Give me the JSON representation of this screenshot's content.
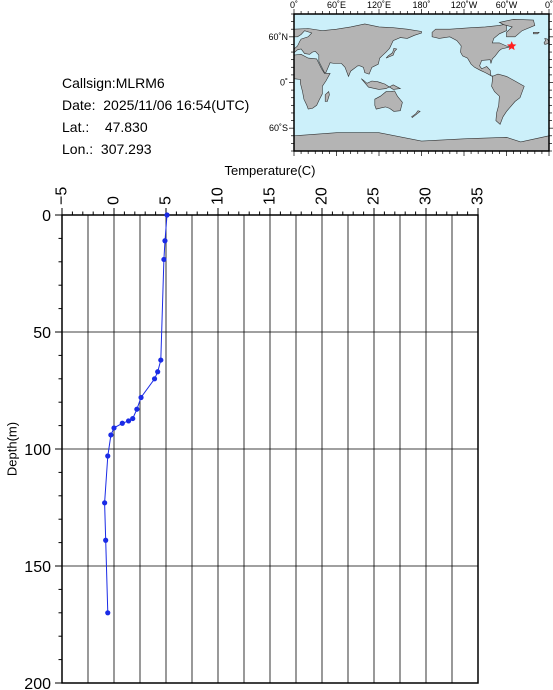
{
  "station": {
    "callsign_label": "Callsign:",
    "callsign": "MLRM6",
    "date_label": "Date:",
    "date": "2025/11/06 16:54(UTC)",
    "lat_label": "Lat.:",
    "lat": "47.830",
    "lon_label": "Lon.:",
    "lon": "307.293"
  },
  "map": {
    "top_labels": [
      "0˚",
      "60˚E",
      "120˚E",
      "180˚",
      "120˚W",
      "60˚W",
      "0˚"
    ],
    "left_labels": [
      "60˚N",
      "0˚",
      "60˚S"
    ],
    "ocean_color": "#ccf0fa",
    "land_color": "#b4b4b4",
    "marker_color": "#ff2020",
    "marker_lat": 47.83,
    "marker_lon": 307.293
  },
  "chart_data": {
    "type": "line",
    "x_axis_title": "Temperature(C)",
    "y_axis_title": "Depth(m)",
    "x_ticks": [
      "−5",
      "0",
      "5",
      "10",
      "15",
      "20",
      "25",
      "30",
      "35"
    ],
    "y_ticks": [
      "0",
      "50",
      "100",
      "150",
      "200"
    ],
    "xlim": [
      -5,
      35
    ],
    "ylim": [
      0,
      200
    ],
    "x_axis_position": "top",
    "y_inverted": true,
    "grid": true,
    "line_color": "#1a2be6",
    "series": [
      {
        "points": [
          {
            "temp": 5.1,
            "depth": 0
          },
          {
            "temp": 4.9,
            "depth": 11
          },
          {
            "temp": 4.8,
            "depth": 19
          },
          {
            "temp": 4.5,
            "depth": 62
          },
          {
            "temp": 4.2,
            "depth": 67
          },
          {
            "temp": 3.9,
            "depth": 70
          },
          {
            "temp": 2.6,
            "depth": 78
          },
          {
            "temp": 2.2,
            "depth": 83
          },
          {
            "temp": 1.8,
            "depth": 87
          },
          {
            "temp": 1.4,
            "depth": 88
          },
          {
            "temp": 0.8,
            "depth": 89
          },
          {
            "temp": 0.0,
            "depth": 91
          },
          {
            "temp": -0.3,
            "depth": 94
          },
          {
            "temp": -0.6,
            "depth": 103
          },
          {
            "temp": -0.9,
            "depth": 123
          },
          {
            "temp": -0.8,
            "depth": 139
          },
          {
            "temp": -0.6,
            "depth": 170
          }
        ]
      }
    ]
  }
}
